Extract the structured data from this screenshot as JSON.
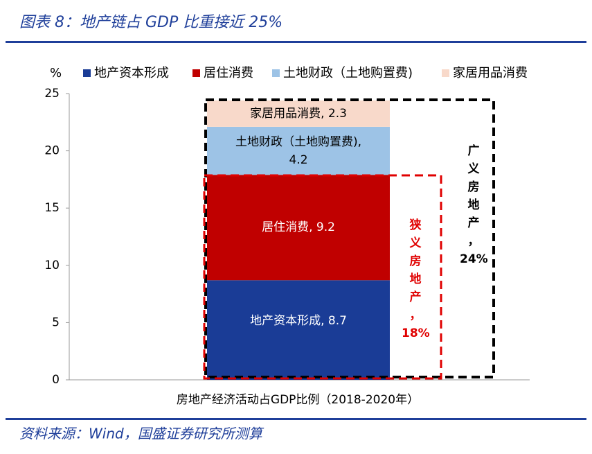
{
  "chart_data": {
    "type": "stacked-bar",
    "title": "图表 8：地产链占 GDP 比重接近 25%",
    "y_unit": "%",
    "xlabel": "房地产经济活动占GDP比例（2018-2020年）",
    "source": "资料来源：Wind，国盛证券研究所测算",
    "series": [
      {
        "name": "地产资本形成",
        "color": "#1a3c96",
        "values": [
          8.7
        ],
        "value_labels": [
          "地产资本形成, 8.7"
        ]
      },
      {
        "name": "居住消费",
        "color": "#c00000",
        "values": [
          9.2
        ],
        "value_labels": [
          "居住消费, 9.2"
        ]
      },
      {
        "name": "土地财政（土地购置费)",
        "color": "#9dc3e6",
        "values": [
          4.2
        ],
        "value_labels": [
          "土地财政（土地购置费), 4.2"
        ]
      },
      {
        "name": "家居用品消费",
        "color": "#f8d9ca",
        "values": [
          2.3
        ],
        "value_labels": [
          "家居用品消费, 2.3"
        ]
      }
    ],
    "ylim": [
      0,
      25
    ],
    "yticks": [
      0,
      5,
      10,
      15,
      20,
      25
    ],
    "grid": false,
    "annotations": [
      {
        "text": "狭义房地产，18%",
        "color": "#e00000"
      },
      {
        "text": "广义房地产，24%",
        "color": "#000000"
      }
    ]
  }
}
